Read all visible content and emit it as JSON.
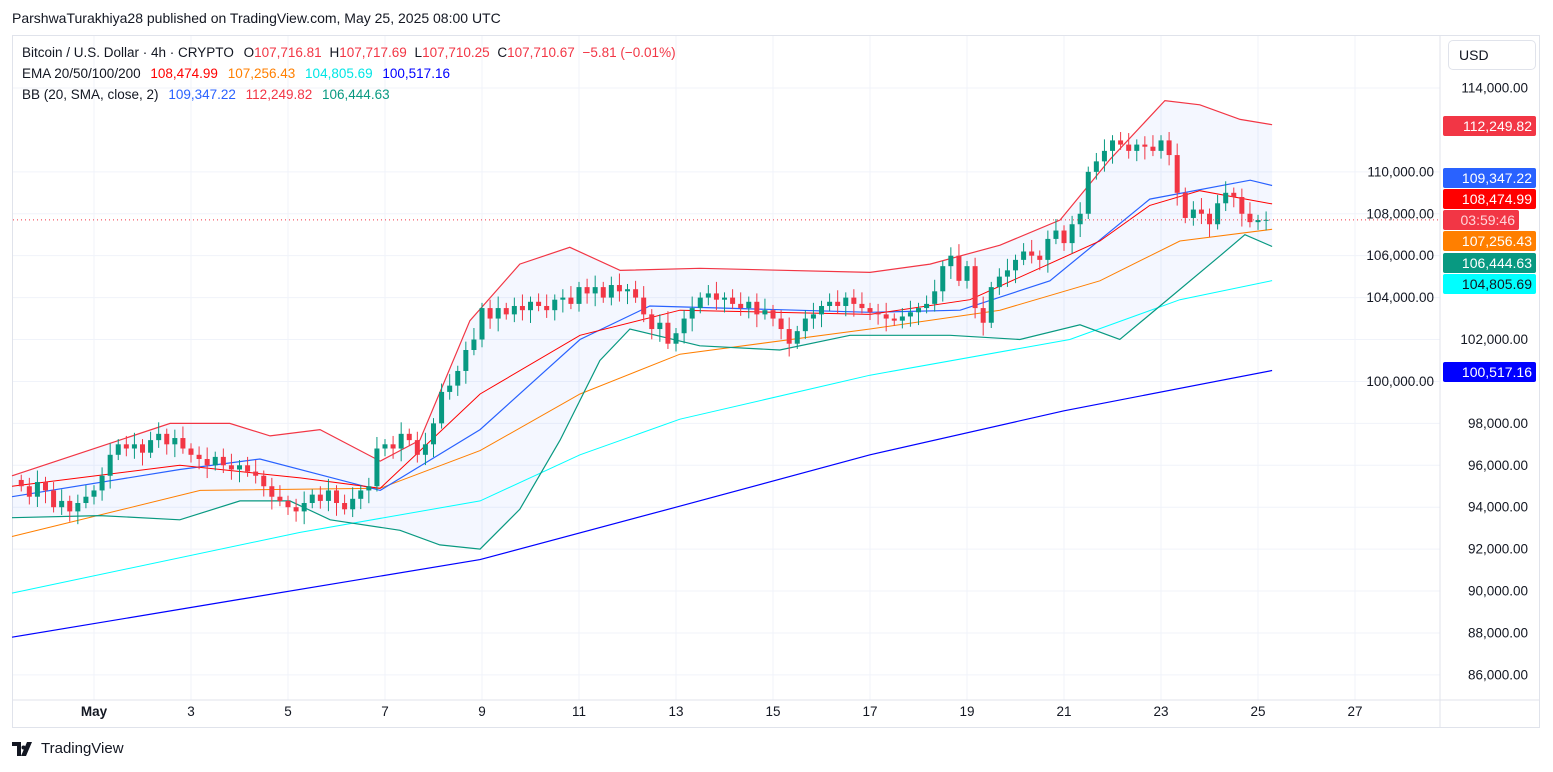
{
  "header": {
    "published": "ParshwaTurakhiya28 published on TradingView.com, May 25, 2025 08:00 UTC"
  },
  "legend": {
    "symbol": "Bitcoin / U.S. Dollar · 4h · CRYPTO",
    "o_label": "O",
    "o": "107,716.81",
    "h_label": "H",
    "h": "107,717.69",
    "l_label": "L",
    "l": "107,710.25",
    "c_label": "C",
    "c": "107,710.67",
    "change": "−5.81 (−0.01%)",
    "ema_title": "EMA 20/50/100/200",
    "ema20": "108,474.99",
    "ema50": "107,256.43",
    "ema100": "104,805.69",
    "ema200": "100,517.16",
    "bb_title": "BB (20, SMA, close, 2)",
    "bb_basis": "109,347.22",
    "bb_upper": "112,249.82",
    "bb_lower": "106,444.63"
  },
  "currency_button": "USD",
  "countdown": "03:59:46",
  "logo_text": "TradingView",
  "colors": {
    "up": "#089981",
    "down": "#f23645",
    "ema20": "#ff0000",
    "ema50": "#ff7f00",
    "ema100": "#00ffff",
    "ema200": "#0000ff",
    "bb_basis": "#2962ff",
    "bb_upper": "#f23645",
    "bb_lower": "#089981"
  },
  "chart_data": {
    "type": "candlestick",
    "title": "Bitcoin / U.S. Dollar · 4h · CRYPTO",
    "ylabel": "USD",
    "ylim": [
      85000,
      116500
    ],
    "xlim_days_may": [
      -0.7,
      29.0
    ],
    "x_ticks": [
      {
        "day": 1,
        "label": "May"
      },
      {
        "day": 3,
        "label": "3"
      },
      {
        "day": 5,
        "label": "5"
      },
      {
        "day": 7,
        "label": "7"
      },
      {
        "day": 9,
        "label": "9"
      },
      {
        "day": 11,
        "label": "11"
      },
      {
        "day": 13,
        "label": "13"
      },
      {
        "day": 15,
        "label": "15"
      },
      {
        "day": 17,
        "label": "17"
      },
      {
        "day": 19,
        "label": "19"
      },
      {
        "day": 21,
        "label": "21"
      },
      {
        "day": 23,
        "label": "23"
      },
      {
        "day": 25,
        "label": "25"
      },
      {
        "day": 27,
        "label": "27"
      }
    ],
    "y_ticks": [
      {
        "v": 114000,
        "label": "114,000.00"
      },
      {
        "v": 110000,
        "label": "110,000.00"
      },
      {
        "v": 108000,
        "label": "108,000.00"
      },
      {
        "v": 106000,
        "label": "106,000.00"
      },
      {
        "v": 104000,
        "label": "104,000.00"
      },
      {
        "v": 102000,
        "label": "102,000.00"
      },
      {
        "v": 100000,
        "label": "100,000.00"
      },
      {
        "v": 98000,
        "label": "98,000.00"
      },
      {
        "v": 96000,
        "label": "96,000.00"
      },
      {
        "v": 94000,
        "label": "94,000.00"
      },
      {
        "v": 92000,
        "label": "92,000.00"
      },
      {
        "v": 90000,
        "label": "90,000.00"
      },
      {
        "v": 88000,
        "label": "88,000.00"
      },
      {
        "v": 86000,
        "label": "86,000.00"
      }
    ],
    "candle_start_day": -0.5,
    "candle_step_day": 0.16667,
    "closes_k": [
      95.0,
      94.5,
      95.2,
      94.8,
      94.0,
      94.3,
      93.8,
      94.2,
      94.5,
      94.8,
      95.5,
      96.5,
      97.0,
      96.8,
      97.0,
      96.6,
      97.2,
      97.5,
      97.0,
      97.3,
      96.8,
      96.5,
      96.3,
      96.0,
      96.4,
      96.0,
      95.8,
      96.0,
      95.7,
      95.5,
      95.0,
      94.5,
      94.3,
      94.0,
      93.8,
      94.2,
      94.6,
      94.3,
      94.8,
      94.2,
      93.9,
      94.4,
      94.8,
      95.0,
      96.8,
      97.0,
      96.8,
      97.5,
      97.2,
      96.5,
      97.0,
      98.0,
      99.5,
      99.8,
      100.5,
      101.5,
      102.0,
      103.5,
      103.0,
      103.5,
      103.2,
      103.6,
      103.4,
      103.8,
      103.6,
      103.4,
      103.9,
      104.0,
      103.7,
      104.5,
      104.2,
      104.5,
      104.0,
      104.6,
      104.3,
      104.4,
      104.0,
      103.2,
      102.5,
      102.8,
      101.8,
      102.3,
      103.0,
      103.5,
      104.0,
      104.2,
      103.9,
      104.0,
      103.7,
      103.5,
      103.8,
      103.2,
      103.4,
      103.0,
      102.5,
      101.8,
      102.4,
      103.0,
      103.2,
      103.6,
      103.8,
      103.6,
      104.0,
      103.7,
      103.5,
      103.3,
      103.2,
      103.0,
      102.9,
      103.1,
      103.3,
      103.5,
      103.7,
      104.3,
      105.5,
      106.0,
      104.8,
      105.5,
      103.5,
      102.8,
      104.5,
      105.0,
      105.3,
      105.8,
      106.2,
      106.0,
      105.8,
      106.8,
      107.2,
      106.6,
      107.5,
      108.0,
      110.0,
      110.5,
      111.0,
      111.5,
      111.3,
      111.0,
      111.3,
      111.2,
      111.0,
      111.5,
      110.8,
      109.0,
      107.8,
      108.2,
      108.0,
      107.5,
      108.5,
      109.0,
      108.8,
      108.0,
      107.6,
      107.7,
      107.71
    ],
    "last_price": 107710.67,
    "series": [
      {
        "name": "EMA 20",
        "key": "ema20",
        "points": [
          [
            -0.69,
            95.0
          ],
          [
            2.77,
            96.0
          ],
          [
            5.25,
            95.4
          ],
          [
            6.9,
            94.9
          ],
          [
            8.96,
            99.4
          ],
          [
            11.02,
            102.2
          ],
          [
            13.08,
            103.4
          ],
          [
            17.0,
            103.2
          ],
          [
            19.06,
            103.9
          ],
          [
            21.74,
            106.7
          ],
          [
            22.77,
            108.4
          ],
          [
            23.8,
            109.1
          ],
          [
            25.29,
            108.47
          ]
        ]
      },
      {
        "name": "EMA 50",
        "key": "ema50",
        "points": [
          [
            -0.69,
            92.6
          ],
          [
            3.19,
            94.8
          ],
          [
            6.9,
            94.9
          ],
          [
            8.96,
            96.7
          ],
          [
            11.02,
            99.4
          ],
          [
            13.08,
            101.3
          ],
          [
            17.0,
            102.5
          ],
          [
            19.68,
            103.4
          ],
          [
            21.74,
            104.8
          ],
          [
            23.39,
            106.7
          ],
          [
            25.29,
            107.26
          ]
        ]
      },
      {
        "name": "EMA 100",
        "key": "ema100",
        "points": [
          [
            -0.69,
            89.9
          ],
          [
            5.25,
            92.8
          ],
          [
            8.96,
            94.3
          ],
          [
            11.02,
            96.5
          ],
          [
            13.08,
            98.2
          ],
          [
            17.0,
            100.3
          ],
          [
            21.12,
            102.0
          ],
          [
            23.39,
            103.9
          ],
          [
            25.29,
            104.81
          ]
        ]
      },
      {
        "name": "EMA 200",
        "key": "ema200",
        "points": [
          [
            -0.69,
            87.8
          ],
          [
            4.0,
            89.6
          ],
          [
            8.96,
            91.5
          ],
          [
            13.0,
            94.0
          ],
          [
            17.0,
            96.5
          ],
          [
            21.0,
            98.6
          ],
          [
            25.29,
            100.52
          ]
        ]
      },
      {
        "name": "BB basis",
        "key": "bb_basis",
        "points": [
          [
            -0.69,
            94.5
          ],
          [
            2.77,
            95.8
          ],
          [
            4.42,
            96.3
          ],
          [
            6.9,
            94.8
          ],
          [
            8.96,
            97.7
          ],
          [
            11.02,
            102.0
          ],
          [
            12.46,
            103.6
          ],
          [
            17.0,
            103.3
          ],
          [
            18.86,
            103.4
          ],
          [
            20.71,
            104.8
          ],
          [
            22.77,
            108.7
          ],
          [
            24.84,
            109.6
          ],
          [
            25.29,
            109.35
          ]
        ]
      },
      {
        "name": "BB upper",
        "key": "bb_upper",
        "points": [
          [
            -0.69,
            95.5
          ],
          [
            2.57,
            98.0
          ],
          [
            3.8,
            98.0
          ],
          [
            4.63,
            97.4
          ],
          [
            5.66,
            97.7
          ],
          [
            6.9,
            96.2
          ],
          [
            7.72,
            97.2
          ],
          [
            8.75,
            102.9
          ],
          [
            9.78,
            105.6
          ],
          [
            10.81,
            106.4
          ],
          [
            11.85,
            105.3
          ],
          [
            13.49,
            105.4
          ],
          [
            17.0,
            105.2
          ],
          [
            18.24,
            105.6
          ],
          [
            19.68,
            106.5
          ],
          [
            20.92,
            107.7
          ],
          [
            21.95,
            110.6
          ],
          [
            23.08,
            113.4
          ],
          [
            23.8,
            113.2
          ],
          [
            24.63,
            112.5
          ],
          [
            25.29,
            112.25
          ]
        ]
      },
      {
        "name": "BB lower",
        "key": "bb_lower",
        "points": [
          [
            -0.69,
            93.5
          ],
          [
            1.12,
            93.6
          ],
          [
            2.77,
            93.4
          ],
          [
            4.01,
            94.3
          ],
          [
            5.04,
            94.3
          ],
          [
            5.87,
            93.4
          ],
          [
            7.31,
            92.9
          ],
          [
            8.13,
            92.2
          ],
          [
            8.96,
            92.0
          ],
          [
            9.78,
            93.9
          ],
          [
            10.61,
            97.2
          ],
          [
            11.43,
            101.0
          ],
          [
            12.05,
            102.5
          ],
          [
            13.49,
            101.7
          ],
          [
            15.14,
            101.5
          ],
          [
            16.59,
            102.2
          ],
          [
            18.65,
            102.2
          ],
          [
            20.09,
            102.0
          ],
          [
            21.33,
            102.7
          ],
          [
            22.15,
            102.0
          ],
          [
            22.98,
            103.6
          ],
          [
            24.22,
            106.0
          ],
          [
            24.73,
            107.0
          ],
          [
            25.29,
            106.44
          ]
        ]
      }
    ],
    "price_badges": [
      {
        "key": "bb_upper",
        "v": 112249.82,
        "label": "112,249.82",
        "bg": "#f23645",
        "fg": "#ffffff"
      },
      {
        "key": "bb_basis",
        "v": 109347.22,
        "label": "109,347.22",
        "bg": "#2962ff",
        "fg": "#ffffff"
      },
      {
        "key": "ema20",
        "v": 108474.99,
        "label": "108,474.99",
        "bg": "#ff0000",
        "fg": "#ffffff"
      },
      {
        "key": "ema50",
        "v": 107256.43,
        "label": "107,256.43",
        "bg": "#ff7f00",
        "fg": "#ffffff"
      },
      {
        "key": "bb_lower",
        "v": 106444.63,
        "label": "106,444.63",
        "bg": "#089981",
        "fg": "#ffffff"
      },
      {
        "key": "ema100",
        "v": 104805.69,
        "label": "104,805.69",
        "bg": "#00ffff",
        "fg": "#131722"
      },
      {
        "key": "ema200",
        "v": 100517.16,
        "label": "100,517.16",
        "bg": "#0000ff",
        "fg": "#ffffff"
      }
    ]
  }
}
